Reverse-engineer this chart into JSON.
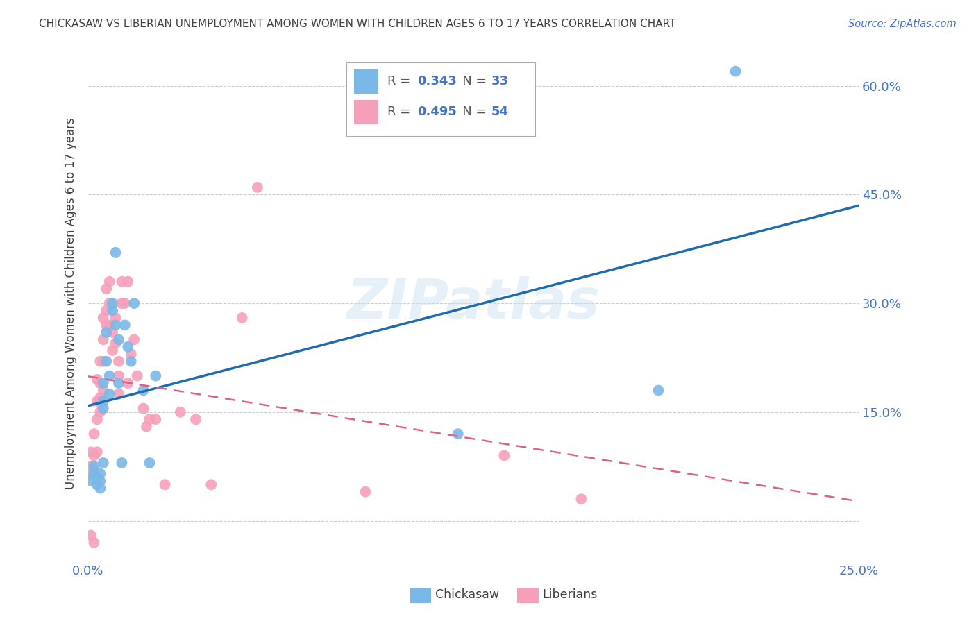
{
  "title": "CHICKASAW VS LIBERIAN UNEMPLOYMENT AMONG WOMEN WITH CHILDREN AGES 6 TO 17 YEARS CORRELATION CHART",
  "source": "Source: ZipAtlas.com",
  "ylabel": "Unemployment Among Women with Children Ages 6 to 17 years",
  "xlim": [
    0.0,
    0.25
  ],
  "ylim": [
    -0.05,
    0.65
  ],
  "yticks": [
    0.0,
    0.15,
    0.3,
    0.45,
    0.6
  ],
  "ytick_labels": [
    "",
    "15.0%",
    "30.0%",
    "45.0%",
    "60.0%"
  ],
  "xticks": [
    0.0,
    0.05,
    0.1,
    0.15,
    0.2,
    0.25
  ],
  "xtick_labels": [
    "0.0%",
    "",
    "",
    "",
    "",
    "25.0%"
  ],
  "chickasaw_R": 0.343,
  "chickasaw_N": 33,
  "liberian_R": 0.495,
  "liberian_N": 54,
  "chickasaw_color": "#7ab8e8",
  "liberian_color": "#f5a0b8",
  "trend_chickasaw_color": "#1f6bb0",
  "trend_liberian_color": "#e06080",
  "watermark": "ZIPatlas",
  "background_color": "#ffffff",
  "tick_color": "#4472c4",
  "grid_color": "#cccccc",
  "title_color": "#404040",
  "chickasaw_x": [
    0.001,
    0.002,
    0.002,
    0.003,
    0.003,
    0.004,
    0.004,
    0.004,
    0.005,
    0.005,
    0.005,
    0.005,
    0.006,
    0.006,
    0.007,
    0.007,
    0.008,
    0.008,
    0.009,
    0.009,
    0.01,
    0.01,
    0.011,
    0.012,
    0.013,
    0.014,
    0.015,
    0.018,
    0.02,
    0.022,
    0.12,
    0.185,
    0.21
  ],
  "chickasaw_y": [
    0.055,
    0.075,
    0.065,
    0.06,
    0.05,
    0.065,
    0.055,
    0.045,
    0.19,
    0.165,
    0.155,
    0.08,
    0.26,
    0.22,
    0.2,
    0.175,
    0.3,
    0.29,
    0.37,
    0.27,
    0.25,
    0.19,
    0.08,
    0.27,
    0.24,
    0.22,
    0.3,
    0.18,
    0.08,
    0.2,
    0.12,
    0.18,
    0.62
  ],
  "liberian_x": [
    0.001,
    0.001,
    0.001,
    0.001,
    0.002,
    0.002,
    0.002,
    0.002,
    0.003,
    0.003,
    0.003,
    0.003,
    0.004,
    0.004,
    0.004,
    0.004,
    0.005,
    0.005,
    0.005,
    0.005,
    0.006,
    0.006,
    0.006,
    0.007,
    0.007,
    0.007,
    0.008,
    0.008,
    0.009,
    0.009,
    0.01,
    0.01,
    0.01,
    0.011,
    0.011,
    0.012,
    0.013,
    0.013,
    0.014,
    0.015,
    0.016,
    0.018,
    0.019,
    0.02,
    0.022,
    0.025,
    0.03,
    0.035,
    0.04,
    0.05,
    0.055,
    0.09,
    0.135,
    0.16
  ],
  "liberian_y": [
    0.095,
    0.075,
    0.065,
    -0.02,
    0.12,
    0.09,
    0.07,
    -0.03,
    0.195,
    0.165,
    0.14,
    0.095,
    0.22,
    0.19,
    0.17,
    0.15,
    0.28,
    0.25,
    0.22,
    0.18,
    0.32,
    0.29,
    0.27,
    0.33,
    0.3,
    0.27,
    0.26,
    0.235,
    0.28,
    0.245,
    0.22,
    0.2,
    0.175,
    0.33,
    0.3,
    0.3,
    0.33,
    0.19,
    0.23,
    0.25,
    0.2,
    0.155,
    0.13,
    0.14,
    0.14,
    0.05,
    0.15,
    0.14,
    0.05,
    0.28,
    0.46,
    0.04,
    0.09,
    0.03
  ]
}
